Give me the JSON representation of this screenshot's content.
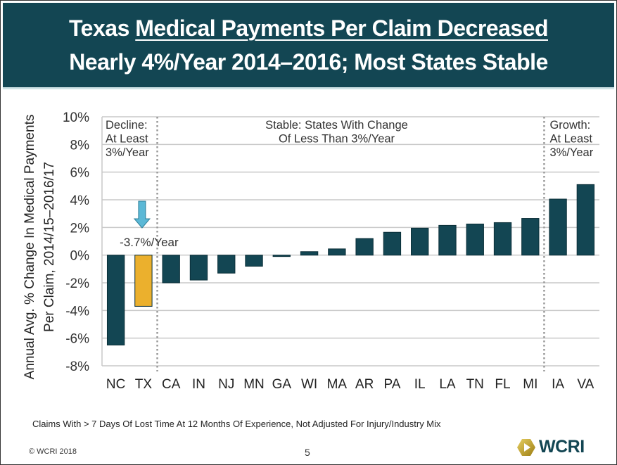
{
  "slide": {
    "title_line1_prefix": "Texas ",
    "title_line1_underlined": "Medical Payments Per Claim Decreased",
    "title_line2": "Nearly 4%/Year 2014–2016; Most States Stable",
    "footnote": "Claims With > 7 Days Of Lost Time At 12 Months Of Experience, Not Adjusted For Injury/Industry Mix",
    "copyright": "© WCRI 2018",
    "page_number": "5",
    "logo_text": "WCRI"
  },
  "colors": {
    "header_bg": "#134653",
    "bar_default": "#134653",
    "bar_highlight": "#EBB02D",
    "arrow": "#5BB8D6",
    "logo_gold": "#C9A227"
  },
  "chart_data": {
    "type": "bar",
    "title": "",
    "ylabel": "Annual Avg. % Change In Medical Payments Per Claim, 2014/15–2016/17",
    "ylabel_line1": "Annual Avg. % Change In Medical Payments",
    "ylabel_line2": "Per Claim, 2014/15–2016/17",
    "xlabel": "",
    "ylim": [
      -8,
      10
    ],
    "yticks": [
      10,
      8,
      6,
      4,
      2,
      0,
      -2,
      -4,
      -6,
      -8
    ],
    "ytick_labels": [
      "10%",
      "8%",
      "6%",
      "4%",
      "2%",
      "0%",
      "-2%",
      "-4%",
      "-6%",
      "-8%"
    ],
    "grid": true,
    "categories": [
      "NC",
      "TX",
      "CA",
      "IN",
      "NJ",
      "MN",
      "GA",
      "WI",
      "MA",
      "AR",
      "PA",
      "IL",
      "LA",
      "TN",
      "FL",
      "MI",
      "IA",
      "VA"
    ],
    "values": [
      -6.5,
      -3.7,
      -2.0,
      -1.8,
      -1.3,
      -0.8,
      -0.1,
      0.25,
      0.45,
      1.2,
      1.65,
      1.95,
      2.15,
      2.25,
      2.35,
      2.65,
      4.05,
      5.1
    ],
    "highlight": "TX",
    "regions": [
      {
        "name": "decline",
        "label_lines": [
          "Decline:",
          "At Least",
          "3%/Year"
        ],
        "categories": [
          "NC",
          "TX"
        ]
      },
      {
        "name": "stable",
        "label_lines": [
          "Stable: States With Change",
          "Of Less Than 3%/Year"
        ],
        "categories": [
          "CA",
          "IN",
          "NJ",
          "MN",
          "GA",
          "WI",
          "MA",
          "AR",
          "PA",
          "IL",
          "LA",
          "TN",
          "FL",
          "MI"
        ]
      },
      {
        "name": "growth",
        "label_lines": [
          "Growth:",
          "At Least",
          "3%/Year"
        ],
        "categories": [
          "IA",
          "VA"
        ]
      }
    ],
    "annotation": {
      "text": "-3.7%/Year",
      "target": "TX"
    }
  }
}
